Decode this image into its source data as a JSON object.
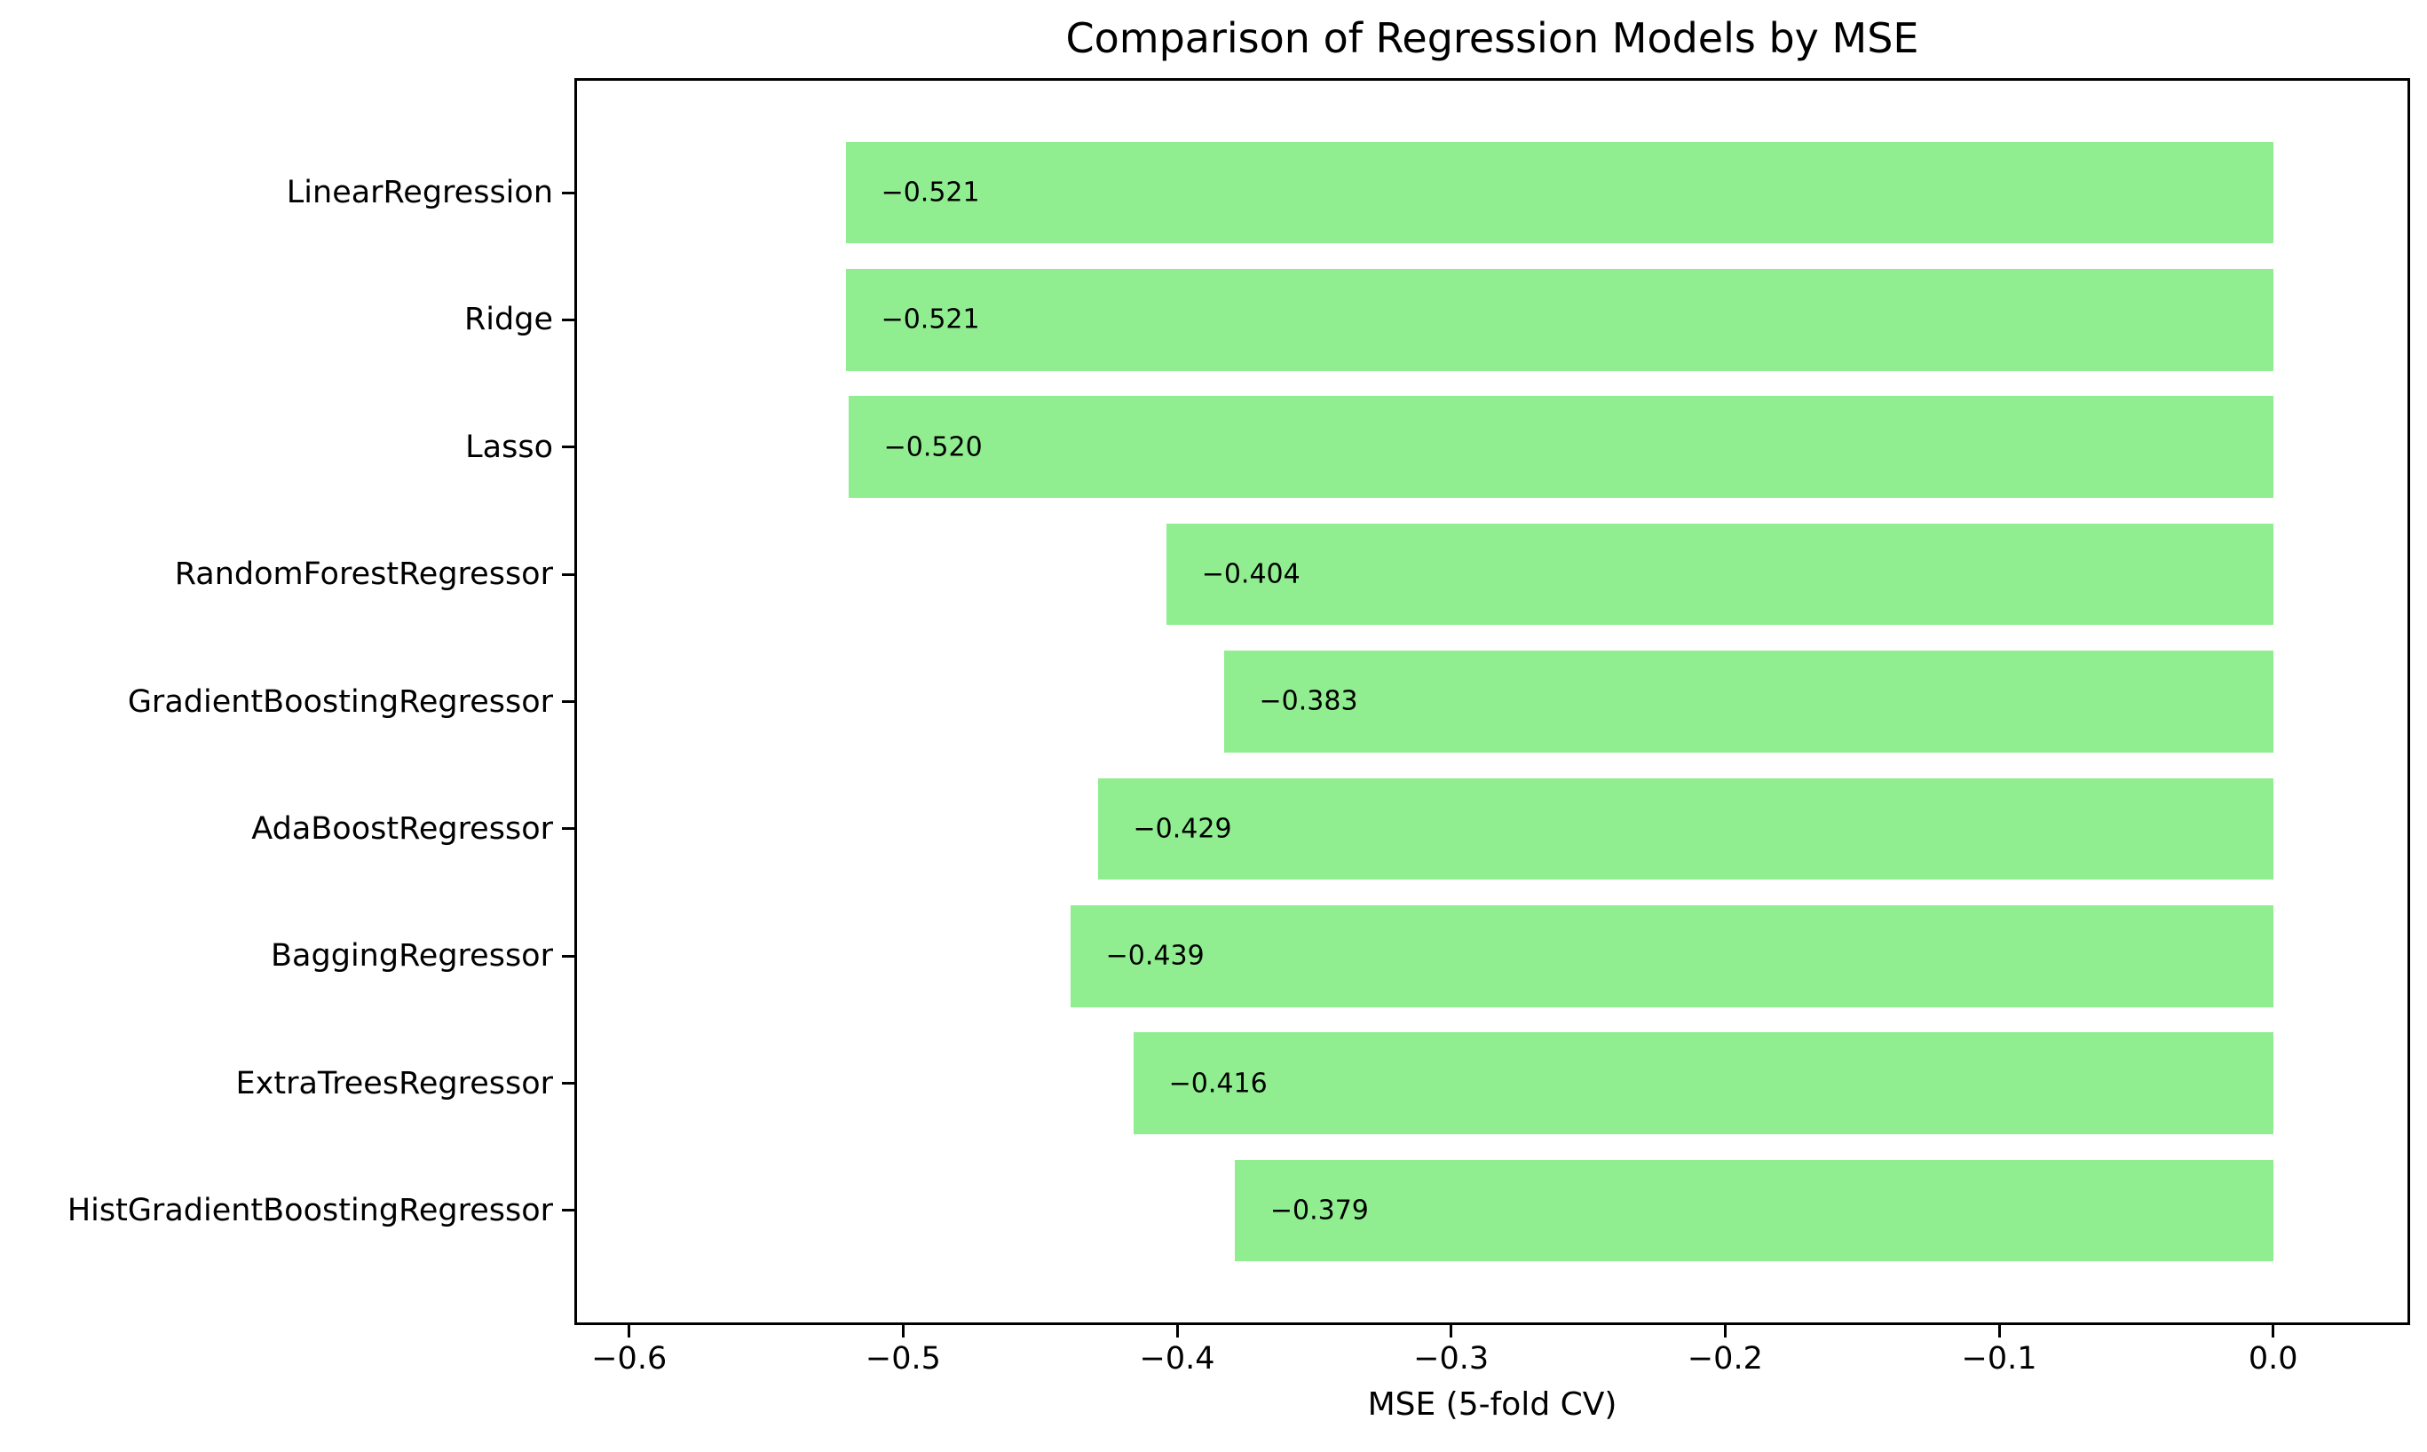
{
  "chart_data": {
    "type": "bar",
    "orientation": "horizontal",
    "title": "Comparison of Regression Models by MSE",
    "xlabel": "MSE (5-fold CV)",
    "ylabel": "",
    "categories": [
      "LinearRegression",
      "Ridge",
      "Lasso",
      "RandomForestRegressor",
      "GradientBoostingRegressor",
      "AdaBoostRegressor",
      "BaggingRegressor",
      "ExtraTreesRegressor",
      "HistGradientBoostingRegressor"
    ],
    "values": [
      -0.521,
      -0.521,
      -0.52,
      -0.404,
      -0.383,
      -0.429,
      -0.439,
      -0.416,
      -0.379
    ],
    "bar_labels": [
      "−0.521",
      "−0.521",
      "−0.520",
      "−0.404",
      "−0.383",
      "−0.429",
      "−0.439",
      "−0.416",
      "−0.379"
    ],
    "x_ticks": [
      -0.6,
      -0.5,
      -0.4,
      -0.3,
      -0.2,
      -0.1,
      0.0
    ],
    "x_tick_labels": [
      "−0.6",
      "−0.5",
      "−0.4",
      "−0.3",
      "−0.2",
      "−0.1",
      "0.0"
    ],
    "xlim": [
      -0.62,
      0.05
    ],
    "grid": false,
    "legend": null,
    "bar_color": "#90EE90",
    "text_color": "#000000",
    "spine_color": "#000000",
    "background_color": "#FFFFFF"
  }
}
